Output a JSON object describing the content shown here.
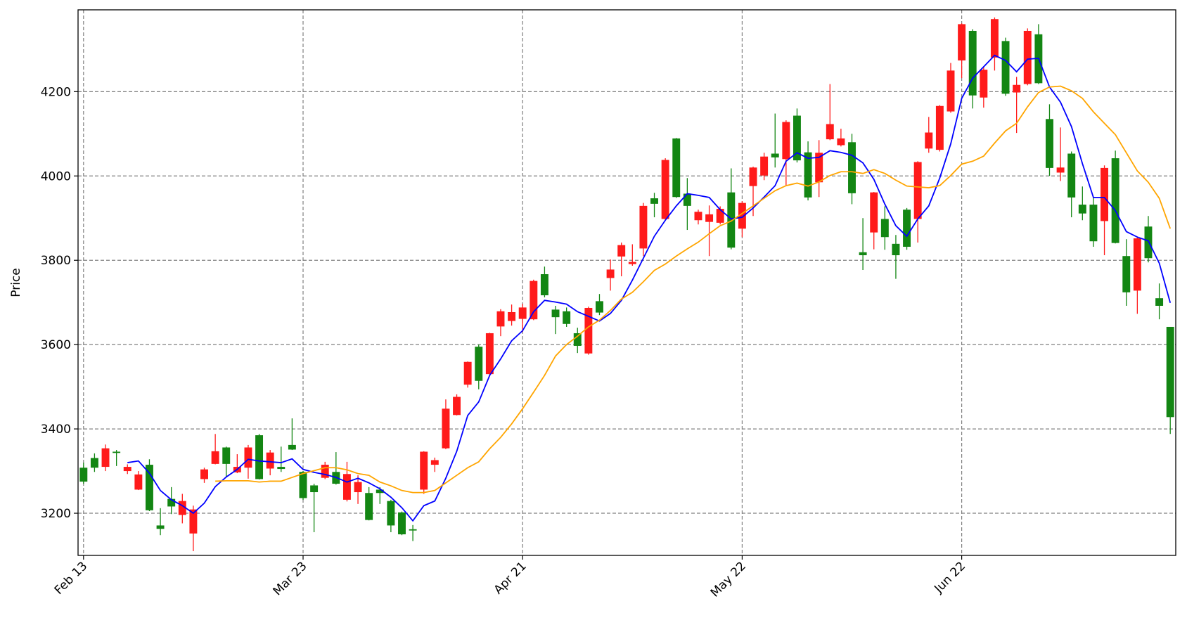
{
  "chart_data": {
    "type": "candlestick",
    "ylabel": "Price",
    "up_color": "#ff1a1a",
    "down_color": "#138613",
    "grid": true,
    "xlim": [
      -0.5,
      99.5
    ],
    "xticks": [
      {
        "value": 0,
        "label": "Feb 13"
      },
      {
        "value": 20,
        "label": "Mar 23"
      },
      {
        "value": 40,
        "label": "Apr 21"
      },
      {
        "value": 60,
        "label": "May 22"
      },
      {
        "value": 80,
        "label": "Jun 22"
      }
    ],
    "ylim": [
      3100,
      4394
    ],
    "yticks": [
      3200,
      3400,
      3600,
      3800,
      4000,
      4200
    ],
    "open": [
      3308,
      3331,
      3310,
      3346,
      3300,
      3256,
      3315,
      3171,
      3234,
      3196,
      3152,
      3281,
      3317,
      3356,
      3297,
      3308,
      3385,
      3306,
      3310,
      3362,
      3298,
      3266,
      3284,
      3298,
      3232,
      3250,
      3248,
      3256,
      3229,
      3202,
      3162,
      3256,
      3315,
      3354,
      3433,
      3505,
      3595,
      3530,
      3643,
      3656,
      3661,
      3660,
      3767,
      3683,
      3679,
      3627,
      3579,
      3703,
      3758,
      3809,
      3791,
      3828,
      3947,
      3898,
      4089,
      3958,
      3895,
      3891,
      3889,
      3961,
      3875,
      3976,
      4001,
      4053,
      4040,
      4143,
      4056,
      3985,
      4087,
      4073,
      4080,
      3819,
      3866,
      3898,
      3839,
      3920,
      3898,
      4065,
      4062,
      4153,
      4274,
      4344,
      4186,
      4281,
      4320,
      4198,
      4218,
      4336,
      4135,
      4008,
      4053,
      3932,
      3932,
      3893,
      4042,
      3810,
      3728,
      3880,
      3710,
      3642
    ],
    "high": [
      3320,
      3342,
      3363,
      3350,
      3316,
      3300,
      3328,
      3212,
      3262,
      3246,
      3218,
      3308,
      3388,
      3358,
      3340,
      3362,
      3388,
      3350,
      3358,
      3425,
      3300,
      3270,
      3322,
      3345,
      3322,
      3290,
      3262,
      3262,
      3232,
      3204,
      3172,
      3347,
      3332,
      3470,
      3482,
      3560,
      3600,
      3628,
      3684,
      3695,
      3697,
      3754,
      3785,
      3692,
      3688,
      3640,
      3690,
      3720,
      3802,
      3842,
      3838,
      3936,
      3960,
      4042,
      4090,
      3995,
      3920,
      3930,
      3928,
      4018,
      3940,
      4022,
      4055,
      4148,
      4132,
      4160,
      4082,
      4085,
      4218,
      4112,
      4100,
      3900,
      3962,
      3928,
      3860,
      3924,
      4035,
      4140,
      4168,
      4268,
      4362,
      4348,
      4260,
      4376,
      4328,
      4235,
      4350,
      4360,
      4170,
      4115,
      4058,
      3975,
      3950,
      4025,
      4060,
      3850,
      3855,
      3905,
      3745,
      3642
    ],
    "low": [
      3270,
      3298,
      3300,
      3312,
      3293,
      3255,
      3205,
      3148,
      3198,
      3176,
      3110,
      3272,
      3316,
      3286,
      3295,
      3282,
      3280,
      3290,
      3298,
      3350,
      3232,
      3155,
      3281,
      3268,
      3228,
      3222,
      3183,
      3222,
      3155,
      3148,
      3134,
      3246,
      3298,
      3352,
      3432,
      3498,
      3494,
      3525,
      3620,
      3645,
      3630,
      3658,
      3712,
      3625,
      3642,
      3580,
      3576,
      3670,
      3728,
      3762,
      3787,
      3810,
      3902,
      3896,
      3948,
      3872,
      3885,
      3810,
      3885,
      3826,
      3855,
      3905,
      3990,
      4020,
      3978,
      4032,
      3942,
      3950,
      4085,
      4070,
      3933,
      3777,
      3826,
      3825,
      3756,
      3825,
      3842,
      4055,
      4058,
      4150,
      4232,
      4160,
      4162,
      4250,
      4190,
      4102,
      4215,
      4218,
      4000,
      3988,
      3902,
      3895,
      3832,
      3812,
      3840,
      3692,
      3673,
      3795,
      3660,
      3388
    ],
    "close": [
      3275,
      3308,
      3354,
      3343,
      3310,
      3292,
      3207,
      3163,
      3216,
      3229,
      3209,
      3304,
      3347,
      3317,
      3310,
      3356,
      3281,
      3344,
      3305,
      3351,
      3236,
      3250,
      3315,
      3270,
      3293,
      3274,
      3184,
      3248,
      3171,
      3150,
      3159,
      3346,
      3326,
      3448,
      3476,
      3559,
      3514,
      3627,
      3679,
      3677,
      3688,
      3751,
      3717,
      3665,
      3649,
      3597,
      3687,
      3676,
      3778,
      3836,
      3796,
      3929,
      3934,
      4038,
      3950,
      3929,
      3915,
      3909,
      3922,
      3830,
      3936,
      4020,
      4046,
      4044,
      4128,
      4037,
      3949,
      4055,
      4123,
      4089,
      3959,
      3812,
      3961,
      3855,
      3812,
      3832,
      4033,
      4103,
      4166,
      4250,
      4360,
      4191,
      4252,
      4372,
      4195,
      4216,
      4344,
      4220,
      4019,
      4020,
      3949,
      3911,
      3845,
      4019,
      3841,
      3724,
      3852,
      3805,
      3692,
      3428
    ],
    "series": [
      {
        "color": "#0000ff",
        "values": [
          null,
          null,
          null,
          null,
          3320,
          3324,
          3295,
          3254,
          3232,
          3218,
          3200,
          3224,
          3263,
          3286,
          3304,
          3328,
          3324,
          3322,
          3320,
          3329,
          3304,
          3297,
          3292,
          3285,
          3274,
          3283,
          3272,
          3258,
          3238,
          3213,
          3182,
          3218,
          3229,
          3283,
          3347,
          3432,
          3464,
          3527,
          3566,
          3609,
          3633,
          3678,
          3705,
          3701,
          3696,
          3678,
          3667,
          3656,
          3674,
          3705,
          3753,
          3805,
          3857,
          3895,
          3929,
          3958,
          3954,
          3949,
          3920,
          3898,
          3902,
          3924,
          3950,
          3977,
          4035,
          4055,
          4042,
          4044,
          4060,
          4056,
          4049,
          4031,
          3992,
          3933,
          3882,
          3857,
          3898,
          3929,
          3995,
          4076,
          4184,
          4232,
          4259,
          4286,
          4274,
          4247,
          4277,
          4279,
          4211,
          4175,
          4117,
          4029,
          3949,
          3949,
          3918,
          3868,
          3855,
          3846,
          3793,
          3699
        ]
      },
      {
        "color": "#ffa500",
        "values": [
          null,
          null,
          null,
          null,
          null,
          null,
          null,
          null,
          null,
          null,
          null,
          null,
          3276,
          3277,
          3277,
          3277,
          3274,
          3276,
          3276,
          3285,
          3294,
          3301,
          3308,
          3308,
          3303,
          3294,
          3290,
          3274,
          3265,
          3254,
          3249,
          3249,
          3254,
          3272,
          3290,
          3308,
          3322,
          3353,
          3380,
          3412,
          3448,
          3487,
          3527,
          3573,
          3600,
          3620,
          3642,
          3658,
          3681,
          3708,
          3724,
          3749,
          3776,
          3791,
          3810,
          3827,
          3843,
          3863,
          3882,
          3893,
          3911,
          3929,
          3947,
          3965,
          3977,
          3983,
          3976,
          3986,
          4001,
          4010,
          4010,
          4006,
          4015,
          4006,
          3990,
          3976,
          3974,
          3972,
          3977,
          4001,
          4028,
          4035,
          4047,
          4078,
          4107,
          4125,
          4164,
          4198,
          4211,
          4213,
          4202,
          4184,
          4152,
          4125,
          4098,
          4055,
          4012,
          3985,
          3947,
          3875
        ]
      }
    ]
  }
}
